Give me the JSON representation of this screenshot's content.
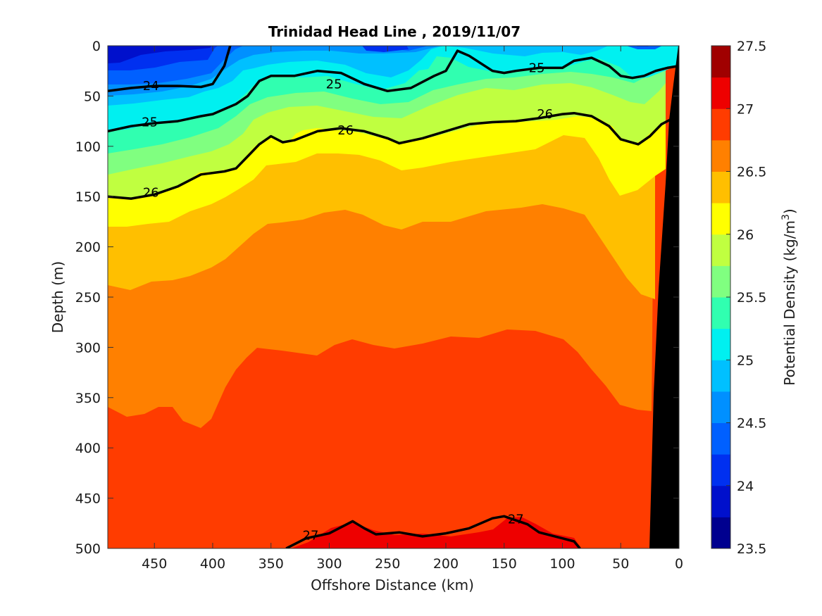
{
  "chart_data": {
    "type": "contour",
    "title": "Trinidad Head Line , 2019/11/07",
    "xlabel": "Offshore Distance (km)",
    "ylabel": "Depth (m)",
    "xlim": [
      490,
      0
    ],
    "ylim": [
      0,
      500
    ],
    "x_reversed": true,
    "y_reversed": true,
    "x_ticks": [
      "450",
      "400",
      "350",
      "300",
      "250",
      "200",
      "150",
      "100",
      "50",
      "0"
    ],
    "x_tick_values": [
      450,
      400,
      350,
      300,
      250,
      200,
      150,
      100,
      50,
      0
    ],
    "y_ticks": [
      "0",
      "50",
      "100",
      "150",
      "200",
      "250",
      "300",
      "350",
      "400",
      "450",
      "500"
    ],
    "y_tick_values": [
      0,
      50,
      100,
      150,
      200,
      250,
      300,
      350,
      400,
      450,
      500
    ],
    "colorbar": {
      "label": "Potential Density (kg/m",
      "label_superscript": "3",
      "label_suffix": ")",
      "range": [
        23.5,
        27.5
      ],
      "tick_labels": [
        "23.5",
        "24",
        "24.5",
        "25",
        "25.5",
        "26",
        "26.5",
        "27",
        "27.5"
      ],
      "tick_values": [
        23.5,
        24,
        24.5,
        25,
        25.5,
        26,
        26.5,
        27,
        27.5
      ],
      "levels": [
        23.5,
        23.75,
        24,
        24.25,
        24.5,
        24.75,
        25,
        25.25,
        25.5,
        25.75,
        26,
        26.25,
        26.5,
        26.75,
        27,
        27.25,
        27.5
      ],
      "colors": [
        "#00008f",
        "#0010cc",
        "#0030f0",
        "#0060ff",
        "#0090ff",
        "#00c0ff",
        "#00f0f0",
        "#30ffb0",
        "#80ff80",
        "#c0ff40",
        "#ffff00",
        "#ffbf00",
        "#ff8000",
        "#ff3c00",
        "#ee0000",
        "#a00000"
      ]
    },
    "series": [
      {
        "isopycnal": 24.0,
        "x": [
          490,
          470,
          450,
          430,
          410,
          400,
          390,
          385
        ],
        "depth": [
          45,
          42,
          40,
          40,
          41,
          38,
          20,
          0
        ]
      },
      {
        "isopycnal": 25.0,
        "x": [
          490,
          470,
          450,
          430,
          410,
          400,
          380,
          370,
          360,
          350,
          330,
          310,
          290,
          270,
          250,
          230,
          210,
          200,
          190,
          180,
          160,
          150,
          140,
          120,
          100,
          90,
          75,
          60,
          50,
          40,
          30,
          20,
          10,
          0
        ],
        "depth": [
          85,
          80,
          77,
          75,
          70,
          68,
          58,
          50,
          35,
          30,
          30,
          25,
          27,
          38,
          45,
          42,
          30,
          25,
          5,
          10,
          25,
          27,
          25,
          22,
          22,
          15,
          12,
          20,
          30,
          32,
          30,
          25,
          22,
          20
        ]
      },
      {
        "isopycnal": 26.0,
        "x": [
          490,
          470,
          450,
          430,
          410,
          390,
          380,
          370,
          360,
          350,
          340,
          330,
          310,
          290,
          270,
          250,
          240,
          220,
          200,
          180,
          160,
          140,
          120,
          100,
          90,
          75,
          60,
          50,
          35,
          25,
          15,
          5
        ],
        "depth": [
          150,
          152,
          148,
          140,
          128,
          125,
          122,
          110,
          98,
          90,
          96,
          94,
          85,
          82,
          85,
          92,
          97,
          92,
          85,
          78,
          76,
          75,
          72,
          68,
          67,
          70,
          80,
          93,
          98,
          90,
          78,
          72
        ]
      },
      {
        "isopycnal": 27.0,
        "x": [
          337,
          320,
          300,
          280,
          270,
          260,
          240,
          220,
          200,
          180,
          160,
          150,
          130,
          120,
          100,
          90,
          85
        ],
        "depth": [
          500,
          490,
          485,
          473,
          480,
          486,
          484,
          488,
          485,
          480,
          470,
          468,
          476,
          484,
          490,
          493,
          500
        ]
      }
    ],
    "contour_labels": [
      {
        "text": "24",
        "x": 453,
        "depth": 40
      },
      {
        "text": "25",
        "x": 296,
        "depth": 38
      },
      {
        "text": "25",
        "x": 122,
        "depth": 22
      },
      {
        "text": "25",
        "x": 454,
        "depth": 76
      },
      {
        "text": "26",
        "x": 286,
        "depth": 84
      },
      {
        "text": "26",
        "x": 115,
        "depth": 68
      },
      {
        "text": "26",
        "x": 453,
        "depth": 146
      },
      {
        "text": "27",
        "x": 316,
        "depth": 487
      },
      {
        "text": "27",
        "x": 140,
        "depth": 471
      }
    ]
  }
}
